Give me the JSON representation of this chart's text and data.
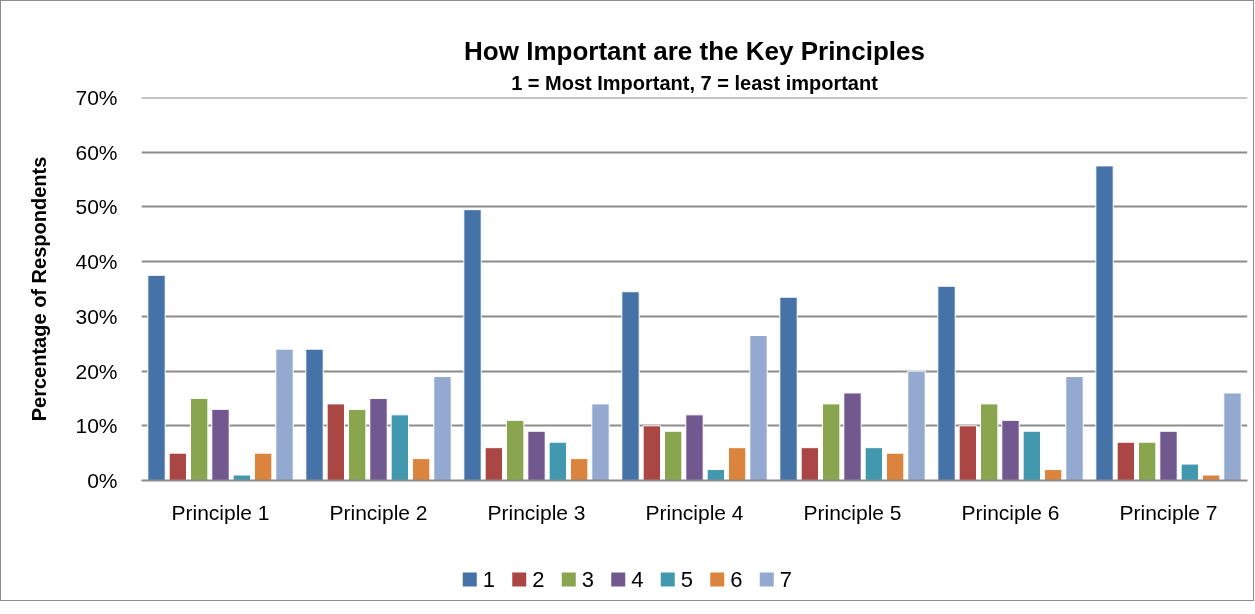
{
  "chart_data": {
    "type": "bar",
    "title": "How Important are the Key Principles",
    "subtitle": "1 = Most Important, 7 = least important",
    "ylabel": "Percentage of Respondents",
    "categories": [
      "Principle 1",
      "Principle 2",
      "Principle 3",
      "Principle 4",
      "Principle 5",
      "Principle 6",
      "Principle 7"
    ],
    "series": [
      {
        "name": "1",
        "color": "#4572a7",
        "values": [
          37.5,
          24,
          49.5,
          34.5,
          33.5,
          35.5,
          57.5
        ]
      },
      {
        "name": "2",
        "color": "#aa4643",
        "values": [
          5,
          14,
          6,
          10,
          6,
          10,
          7
        ]
      },
      {
        "name": "3",
        "color": "#89a54e",
        "values": [
          15,
          13,
          11,
          9,
          14,
          14,
          7
        ]
      },
      {
        "name": "4",
        "color": "#71588f",
        "values": [
          13,
          15,
          9,
          12,
          16,
          11,
          9
        ]
      },
      {
        "name": "5",
        "color": "#4198af",
        "values": [
          1,
          12,
          7,
          2,
          6,
          9,
          3
        ]
      },
      {
        "name": "6",
        "color": "#db843d",
        "values": [
          5,
          4,
          4,
          6,
          5,
          2,
          1
        ]
      },
      {
        "name": "7",
        "color": "#93a9cf",
        "values": [
          24,
          19,
          14,
          26.5,
          20,
          19,
          16
        ]
      }
    ],
    "ylim": [
      0,
      70
    ],
    "yticks": [
      {
        "value": 0,
        "label": "0%"
      },
      {
        "value": 10,
        "label": "10%"
      },
      {
        "value": 20,
        "label": "20%"
      },
      {
        "value": 30,
        "label": "30%"
      },
      {
        "value": 40,
        "label": "40%"
      },
      {
        "value": 50,
        "label": "50%"
      },
      {
        "value": 60,
        "label": "60%"
      },
      {
        "value": 70,
        "label": "70%"
      }
    ],
    "grid": "y",
    "legend": "bottom"
  }
}
